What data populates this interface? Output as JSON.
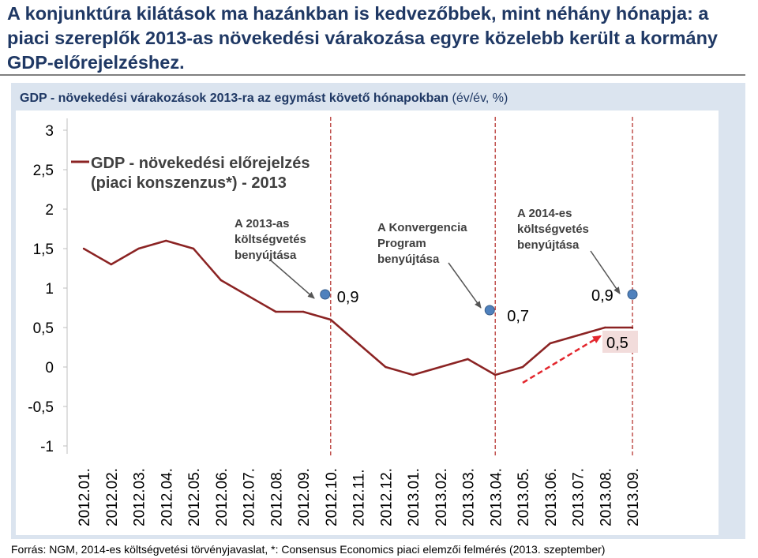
{
  "headline": "A konjunktúra kilátások ma hazánkban is kedvezőbbek, mint néhány hónapja: a piaci szereplők 2013-as növekedési várakozása egyre közelebb került a kormány GDP-előrejelzéshez.",
  "subtitle": {
    "main": "GDP  - növekedési várakozások 2013-ra az egymást követő hónapokban",
    "unit": "(év/év, %)"
  },
  "source": "Forrás: NGM, 2014-es költségvetési törvényjavaslat, *: Consensus Economics piaci elemzői felmérés (2013. szeptember)",
  "colors": {
    "headline": "#1f3864",
    "line": "#8b2323",
    "point": "#4f81bd",
    "dashed_arrow": "#e3262d",
    "event_line": "#c0504d",
    "panel": "#dbe4ef"
  },
  "chart_data": {
    "type": "line",
    "title": "GDP - növekedési várakozások 2013-ra az egymást követő hónapokban (év/év, %)",
    "ylim": [
      -1,
      3
    ],
    "yticks": [
      "3",
      "2,5",
      "2",
      "1,5",
      "1",
      "0,5",
      "0",
      "-0,5",
      "-1"
    ],
    "ytick_values": [
      3,
      2.5,
      2,
      1.5,
      1,
      0.5,
      0,
      -0.5,
      -1
    ],
    "categories": [
      "2012.01.",
      "2012.02.",
      "2012.03.",
      "2012.04.",
      "2012.05.",
      "2012.06.",
      "2012.07.",
      "2012.08.",
      "2012.09.",
      "2012.10.",
      "2012.11.",
      "2012.12.",
      "2013.01.",
      "2013.02.",
      "2013.03.",
      "2013.04.",
      "2013.05.",
      "2013.06.",
      "2013.07.",
      "2013.08.",
      "2013.09."
    ],
    "series": [
      {
        "name": "GDP - növekedési előrejelzés (piaci konszenzus*) - 2013",
        "legend_lines": [
          "GDP - növekedési előrejelzés",
          "(piaci konszenzus*) - 2013"
        ],
        "values": [
          1.5,
          1.3,
          1.5,
          1.6,
          1.5,
          1.1,
          0.9,
          0.7,
          0.7,
          0.6,
          0.3,
          0.0,
          -0.1,
          0.0,
          0.1,
          -0.1,
          0.0,
          0.3,
          0.4,
          0.5,
          0.5
        ]
      }
    ],
    "government_forecasts": [
      {
        "category": "2012.10.",
        "value": 0.9,
        "label": "0,9"
      },
      {
        "category": "2013.04.",
        "value": 0.7,
        "label": "0,7"
      },
      {
        "category": "2013.09.",
        "value": 0.9,
        "label": "0,9"
      }
    ],
    "events": [
      {
        "category": "2012.10.",
        "lines": [
          "A 2013-as",
          "költségvetés",
          "benyújtása"
        ]
      },
      {
        "category": "2013.04.",
        "lines": [
          "A Konvergencia",
          "Program",
          "benyújtása"
        ]
      },
      {
        "category": "2013.09.",
        "lines": [
          "A 2014-es",
          "költségvetés",
          "benyújtása"
        ]
      }
    ],
    "end_value_label": "0,5",
    "trend_arrow": {
      "from_category": "2013.05.",
      "from_value": -0.2,
      "to_category": "2013.08.",
      "to_value": 0.4
    }
  }
}
